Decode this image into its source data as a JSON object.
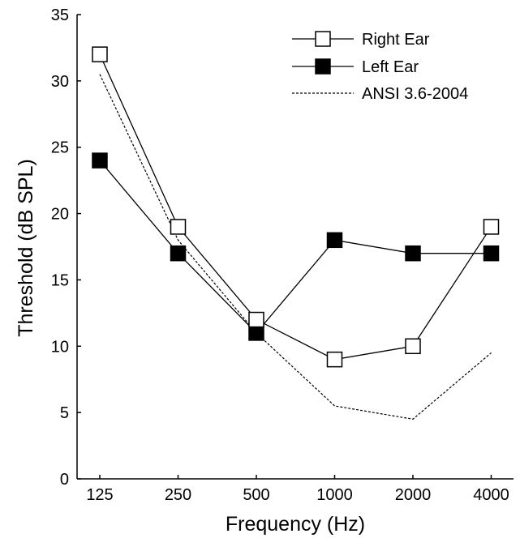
{
  "chart_data": {
    "type": "line",
    "xlabel": "Frequency (Hz)",
    "ylabel": "Threshold (dB SPL)",
    "categories": [
      "125",
      "250",
      "500",
      "1000",
      "2000",
      "4000"
    ],
    "x_scale": "log2",
    "ylim": [
      0,
      35
    ],
    "yticks": [
      "0",
      "5",
      "10",
      "15",
      "20",
      "25",
      "30",
      "35"
    ],
    "grid": false,
    "legend_position": "top-right",
    "series": [
      {
        "name": "Right Ear",
        "marker": "square-open",
        "line": "solid",
        "values": [
          32,
          19,
          12,
          9,
          10,
          19
        ]
      },
      {
        "name": "Left Ear",
        "marker": "square-filled",
        "line": "solid",
        "values": [
          24,
          17,
          11,
          18,
          17,
          17
        ]
      },
      {
        "name": "ANSI 3.6-2004",
        "marker": "none",
        "line": "dotted",
        "values": [
          30.5,
          18,
          11,
          5.5,
          4.5,
          9.5
        ]
      }
    ]
  }
}
